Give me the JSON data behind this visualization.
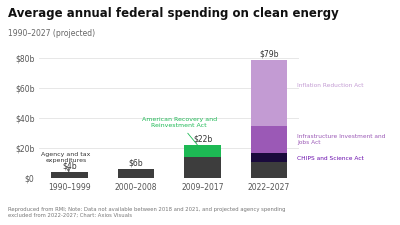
{
  "title": "Average annual federal spending on clean energy",
  "subtitle": "1990–2027 (projected)",
  "categories": [
    "1990–1999",
    "2000–2008",
    "2009–2017",
    "2022–2027"
  ],
  "agency_values": [
    4,
    6,
    14,
    11
  ],
  "arra_values": [
    0,
    0,
    8,
    0
  ],
  "chips_values": [
    0,
    0,
    0,
    6
  ],
  "iija_values": [
    0,
    0,
    0,
    18
  ],
  "ira_values": [
    0,
    0,
    0,
    44
  ],
  "bar_labels": [
    "$4b",
    "$6b",
    "$22b",
    "$79b"
  ],
  "agency_color": "#3d3d3d",
  "arra_color": "#1db954",
  "chips_color": "#1a0a3c",
  "iija_color": "#9b59b6",
  "ira_color": "#c39bd3",
  "ylim": [
    0,
    85
  ],
  "yticks": [
    0,
    20,
    40,
    60,
    80
  ],
  "ytick_labels": [
    "$0",
    "$20b",
    "$40b",
    "$60b",
    "$80b"
  ],
  "footnote": "Reproduced from RMI; Note: Data not available between 2018 and 2021, and projected agency spending\nexcluded from 2022-2027; Chart: Axios Visuals",
  "annotation_agency": "Agency and tax\nexpenditures",
  "annotation_arra": "American Recovery and\nReinvestment Act",
  "annotation_ira": "Inflation Reduction Act",
  "annotation_iija": "Infrastructure Investment and\nJobs Act",
  "annotation_chips": "CHIPS and Science Act",
  "background_color": "#ffffff"
}
